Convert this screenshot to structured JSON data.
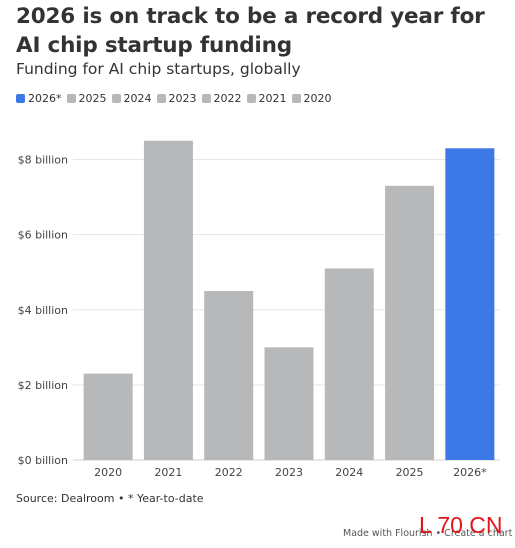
{
  "title": "2026 is on track to be a record year for AI chip startup funding",
  "subtitle": "Funding for AI chip startups, globally",
  "source": "Source: Dealroom • * Year-to-date",
  "footer": "Made with Flourish • Create a chart",
  "watermark": "L 70 CN",
  "legend": [
    {
      "label": "2026*",
      "color": "#3c78e6"
    },
    {
      "label": "2025",
      "color": "#b6b8ba"
    },
    {
      "label": "2024",
      "color": "#b6b8ba"
    },
    {
      "label": "2023",
      "color": "#b6b8ba"
    },
    {
      "label": "2022",
      "color": "#b6b8ba"
    },
    {
      "label": "2021",
      "color": "#b6b8ba"
    },
    {
      "label": "2020",
      "color": "#b6b8ba"
    }
  ],
  "chart_data": {
    "type": "bar",
    "title": "2026 is on track to be a record year for AI chip startup funding",
    "subtitle": "Funding for AI chip startups, globally",
    "xlabel": "",
    "ylabel": "",
    "categories": [
      "2020",
      "2021",
      "2022",
      "2023",
      "2024",
      "2025",
      "2026*"
    ],
    "values": [
      2.3,
      8.5,
      4.5,
      3.0,
      5.1,
      7.3,
      8.3
    ],
    "colors": [
      "#b6b8ba",
      "#b6b8ba",
      "#b6b8ba",
      "#b6b8ba",
      "#b6b8ba",
      "#b6b8ba",
      "#3c78e6"
    ],
    "ylim": [
      0,
      9
    ],
    "yticks": [
      {
        "value": 0,
        "label": "$0 billion"
      },
      {
        "value": 2,
        "label": "$2 billion"
      },
      {
        "value": 4,
        "label": "$4 billion"
      },
      {
        "value": 6,
        "label": "$6 billion"
      },
      {
        "value": 8,
        "label": "$8 billion"
      }
    ],
    "grid": true,
    "legend_position": "top-left"
  }
}
